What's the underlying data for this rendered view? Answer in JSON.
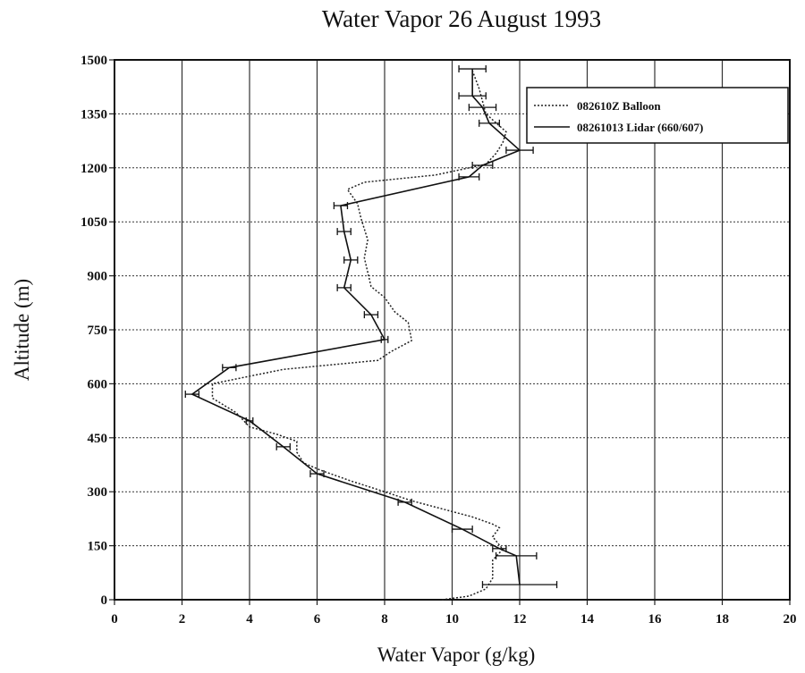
{
  "chart_data": {
    "type": "line",
    "title": "Water Vapor  26 August 1993",
    "x_label": "Water Vapor (g/kg)",
    "y_label": "Altitude (m)",
    "xlim": [
      0,
      20
    ],
    "ylim": [
      0,
      1500
    ],
    "xticks": [
      0,
      2,
      4,
      6,
      8,
      10,
      12,
      14,
      16,
      18,
      20
    ],
    "yticks": [
      0,
      150,
      300,
      450,
      600,
      750,
      900,
      1050,
      1200,
      1350,
      1500
    ],
    "grid": true,
    "legend": "upper right",
    "series": [
      {
        "name": "082610Z Balloon",
        "color": "#222222",
        "style": "dotted",
        "x": [
          9.7,
          10.5,
          11.0,
          11.2,
          11.2,
          11.5,
          11.2,
          11.4,
          11.2,
          10.6,
          9.8,
          8.8,
          8.0,
          7.0,
          6.1,
          5.6,
          5.4,
          5.4,
          4.8,
          4.0,
          3.6,
          2.9,
          2.9,
          5.0,
          7.8,
          8.2,
          8.8,
          8.7,
          8.3,
          8.0,
          7.6,
          7.4,
          7.5,
          7.3,
          7.2,
          6.9,
          7.4,
          9.5,
          11.0,
          11.3,
          11.5,
          11.6,
          11.0,
          10.8,
          10.6
        ],
        "values": [
          0,
          10,
          30,
          60,
          110,
          140,
          175,
          200,
          210,
          230,
          250,
          275,
          300,
          330,
          360,
          380,
          410,
          440,
          460,
          480,
          520,
          560,
          600,
          640,
          665,
          690,
          720,
          770,
          800,
          840,
          870,
          950,
          1000,
          1060,
          1100,
          1140,
          1160,
          1180,
          1210,
          1240,
          1270,
          1300,
          1350,
          1420,
          1470
        ]
      },
      {
        "name": "08261013 Lidar (660/607)",
        "color": "#111111",
        "style": "solid",
        "x": [
          12.0,
          11.9,
          11.4,
          10.3,
          8.6,
          6.0,
          5.0,
          4.0,
          2.3,
          3.4,
          8.0,
          7.6,
          6.8,
          7.0,
          6.8,
          6.7,
          10.5,
          10.9,
          12.0,
          11.1,
          10.9,
          10.6,
          10.6
        ],
        "values": [
          42,
          122,
          142,
          196,
          271,
          350,
          425,
          497,
          571,
          645,
          723,
          792,
          867,
          944,
          1023,
          1095,
          1175,
          1207,
          1249,
          1324,
          1368,
          1400,
          1475
        ],
        "xerr": [
          1.1,
          0.6,
          0.2,
          0.3,
          0.2,
          0.2,
          0.2,
          0.1,
          0.2,
          0.2,
          0.1,
          0.2,
          0.2,
          0.2,
          0.2,
          0.2,
          0.3,
          0.3,
          0.4,
          0.3,
          0.4,
          0.4,
          0.4
        ]
      }
    ]
  }
}
